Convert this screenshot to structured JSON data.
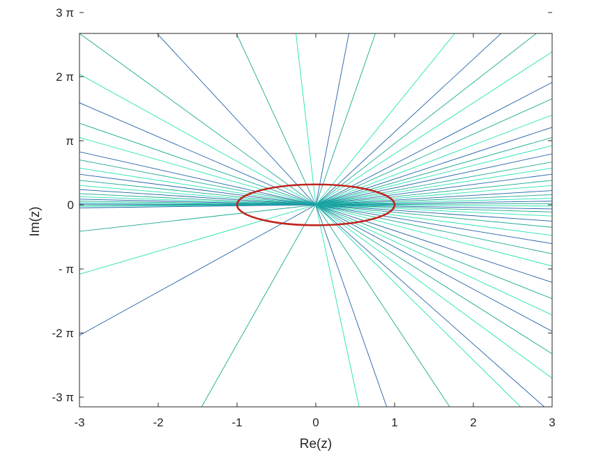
{
  "chart_data": {
    "type": "line",
    "title": "",
    "xlabel": "Re(z)",
    "ylabel": "Im(z)",
    "xlim": [
      -3,
      3
    ],
    "ylim": [
      -9.9,
      8.4
    ],
    "grid": false,
    "xticks": [
      {
        "value": -3,
        "label": "-3"
      },
      {
        "value": -2,
        "label": "-2"
      },
      {
        "value": -1,
        "label": "-1"
      },
      {
        "value": 0,
        "label": "0"
      },
      {
        "value": 1,
        "label": "1"
      },
      {
        "value": 2,
        "label": "2"
      },
      {
        "value": 3,
        "label": "3"
      }
    ],
    "yticks": [
      {
        "value": 9.4248,
        "label": "3 π"
      },
      {
        "value": 6.2832,
        "label": "2 π"
      },
      {
        "value": 3.1416,
        "label": "π"
      },
      {
        "value": 0,
        "label": "0"
      },
      {
        "value": -3.1416,
        "label": "- π"
      },
      {
        "value": -6.2832,
        "label": "-2 π"
      },
      {
        "value": -9.4248,
        "label": "-3 π"
      }
    ],
    "colors": {
      "ray_dark": "#1f5fa8",
      "ray_mid": "#17a890",
      "ray_light": "#1fe3b0",
      "circle": "#c0241c"
    },
    "series": [
      {
        "kind": "circle",
        "center": [
          0,
          0
        ],
        "radius": 1,
        "color": "#c0241c"
      },
      {
        "kind": "rays",
        "origin": [
          0,
          0
        ],
        "endpoints": [
          [
            -2.4,
            10
          ],
          [
            -1.2,
            10
          ],
          [
            -0.3,
            10
          ],
          [
            0.5,
            10
          ],
          [
            0.9,
            10
          ],
          [
            2.1,
            10
          ],
          [
            2.8,
            10
          ],
          [
            -3,
            8.4
          ],
          [
            -3,
            6.4
          ],
          [
            -3,
            5.0
          ],
          [
            -3,
            4.0
          ],
          [
            -3,
            3.3
          ],
          [
            -3,
            2.6
          ],
          [
            -3,
            2.2
          ],
          [
            -3,
            1.8
          ],
          [
            -3,
            1.5
          ],
          [
            -3,
            1.2
          ],
          [
            -3,
            0.95
          ],
          [
            -3,
            0.75
          ],
          [
            -3,
            0.55
          ],
          [
            -3,
            0.4
          ],
          [
            -3,
            0.28
          ],
          [
            -3,
            0.18
          ],
          [
            -3,
            0.1
          ],
          [
            -3,
            0.04
          ],
          [
            -3,
            -0.02
          ],
          [
            -3,
            -0.08
          ],
          [
            -3,
            -0.15
          ],
          [
            -3,
            -1.3
          ],
          [
            -3,
            -3.4
          ],
          [
            -3,
            -6.4
          ],
          [
            -1.45,
            -9.9
          ],
          [
            0.55,
            -9.9
          ],
          [
            0.9,
            -9.9
          ],
          [
            1.7,
            -9.9
          ],
          [
            2.6,
            -9.9
          ],
          [
            2.9,
            -9.9
          ],
          [
            3,
            9.0
          ],
          [
            3,
            7.5
          ],
          [
            3,
            6.0
          ],
          [
            3,
            5.2
          ],
          [
            3,
            4.4
          ],
          [
            3,
            3.8
          ],
          [
            3,
            3.3
          ],
          [
            3,
            2.9
          ],
          [
            3,
            2.5
          ],
          [
            3,
            2.1
          ],
          [
            3,
            1.8
          ],
          [
            3,
            1.5
          ],
          [
            3,
            1.2
          ],
          [
            3,
            0.95
          ],
          [
            3,
            0.7
          ],
          [
            3,
            0.5
          ],
          [
            3,
            0.32
          ],
          [
            3,
            0.18
          ],
          [
            3,
            0.06
          ],
          [
            3,
            -0.06
          ],
          [
            3,
            -0.2
          ],
          [
            3,
            -0.35
          ],
          [
            3,
            -0.55
          ],
          [
            3,
            -0.8
          ],
          [
            3,
            -1.1
          ],
          [
            3,
            -1.5
          ],
          [
            3,
            -1.9
          ],
          [
            3,
            -2.4
          ],
          [
            3,
            -3.0
          ],
          [
            3,
            -3.8
          ],
          [
            3,
            -4.6
          ],
          [
            3,
            -5.4
          ],
          [
            3,
            -6.2
          ],
          [
            3,
            -7.3
          ],
          [
            3,
            -8.5
          ]
        ]
      }
    ]
  }
}
